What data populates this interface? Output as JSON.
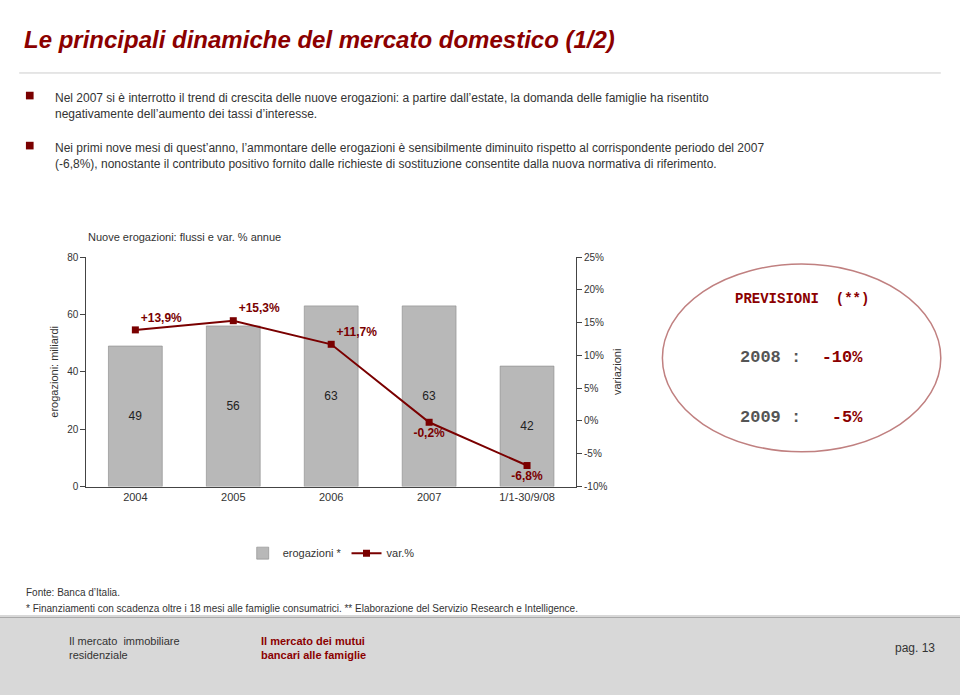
{
  "chart_data": {
    "type": "bar",
    "title": "Le principali dinamiche del mercato domestico (1/2)",
    "subtitle": "Nuove erogazioni: flussi e var. % annue",
    "categories": [
      "2004",
      "2005",
      "2006",
      "2007",
      "1/1-30/9/08"
    ],
    "series": [
      {
        "name": "erogazioni *",
        "type": "bar",
        "color": "#b8b8b8",
        "values": [
          49,
          56,
          63,
          63,
          42
        ]
      },
      {
        "name": "var.%",
        "type": "line",
        "axis": "y2",
        "color": "#7a0000",
        "marker": "square",
        "values": [
          13.9,
          15.3,
          11.7,
          -0.2,
          -6.8
        ],
        "value_labels": [
          "+13,9%",
          "+15,3%",
          "+11,7%",
          "-0,2%",
          "-6,8%"
        ]
      }
    ],
    "data_labels": true,
    "ylabel": "erogazioni: miliardi",
    "y2label": "variazioni",
    "ylim": [
      0,
      80
    ],
    "yticks": [
      0,
      20,
      40,
      60,
      80
    ],
    "y2lim": [
      -10,
      25
    ],
    "y2ticks": [
      {
        "value": -10,
        "label": "-10%"
      },
      {
        "value": -5,
        "label": "-5%"
      },
      {
        "value": 0,
        "label": "0%"
      },
      {
        "value": 5,
        "label": "5%"
      },
      {
        "value": 10,
        "label": "10%"
      },
      {
        "value": 15,
        "label": "15%"
      },
      {
        "value": 20,
        "label": "20%"
      },
      {
        "value": 25,
        "label": "25%"
      }
    ],
    "grid": false,
    "legend": "bottom",
    "annotations": [
      "Nel 2007 si è interrotto il trend di crescita delle nuove erogazioni: a partire dall’estate, la domanda delle famiglie ha risentito negativamente dell’aumento dei tassi d’interesse.",
      "Nei primi nove mesi di quest’anno, l’ammontare delle erogazioni è sensibilmente diminuito rispetto al corrispondente periodo del 2007 (-6,8%), nonostante il contributo positivo fornito dalle richieste di sostituzione consentite dalla nuova normativa di riferimento.",
      "PREVISIONI  (**)",
      "2008 :  -10%",
      "2009 :   -5%",
      "Fonte: Banca d’Italia.",
      "* Finanziamenti con scadenza oltre i 18 mesi alle famiglie consumatrici. ** Elaborazione del Servizio Research e Intelligence.",
      "Il mercato  immobiliare\nresidenziale",
      "Il mercato dei mutui\nbancari alle famiglie",
      "pag. 13"
    ]
  }
}
